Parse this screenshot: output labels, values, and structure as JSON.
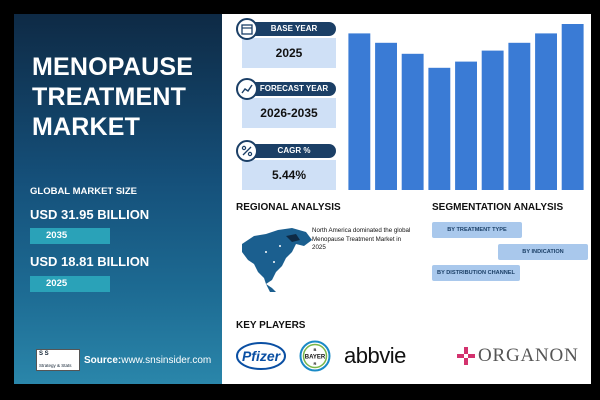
{
  "report": {
    "title_lines": [
      "MENOPAUSE",
      "TREATMENT",
      "MARKET"
    ],
    "global_market_size_label": "GLOBAL MARKET SIZE",
    "value_2035": "USD 31.95 BILLION",
    "year_2035": "2035",
    "value_2025": "USD 18.81 BILLION",
    "year_2025": "2025",
    "logo_text_top": "S  S",
    "logo_text_bottom": "Strategy & Stats",
    "source_label": "Source:",
    "source_url": "www.snsinsider.com"
  },
  "tiles": [
    {
      "label": "BASE YEAR",
      "value": "2025",
      "icon": "calendar-icon"
    },
    {
      "label": "FORECAST YEAR",
      "value": "2026-2035",
      "icon": "chart-icon"
    },
    {
      "label": "CAGR %",
      "value": "5.44%",
      "icon": "percent-icon"
    }
  ],
  "chart_data": {
    "type": "bar",
    "color": "#3a7bd5",
    "values": [
      100,
      94,
      87,
      78,
      82,
      89,
      94,
      100,
      106
    ]
  },
  "regional": {
    "heading": "REGIONAL ANALYSIS",
    "text": "North America dominated the global Menopause Treatment Market in 2025"
  },
  "segmentation": {
    "heading": "SEGMENTATION ANALYSIS",
    "items": [
      "BY TREATMENT TYPE",
      "BY INDICATION",
      "BY DISTRIBUTION CHANNEL"
    ]
  },
  "key_players": {
    "heading": "KEY PLAYERS",
    "logos": [
      "Pfizer",
      "BAYER",
      "abbvie",
      "ORGANON"
    ]
  }
}
